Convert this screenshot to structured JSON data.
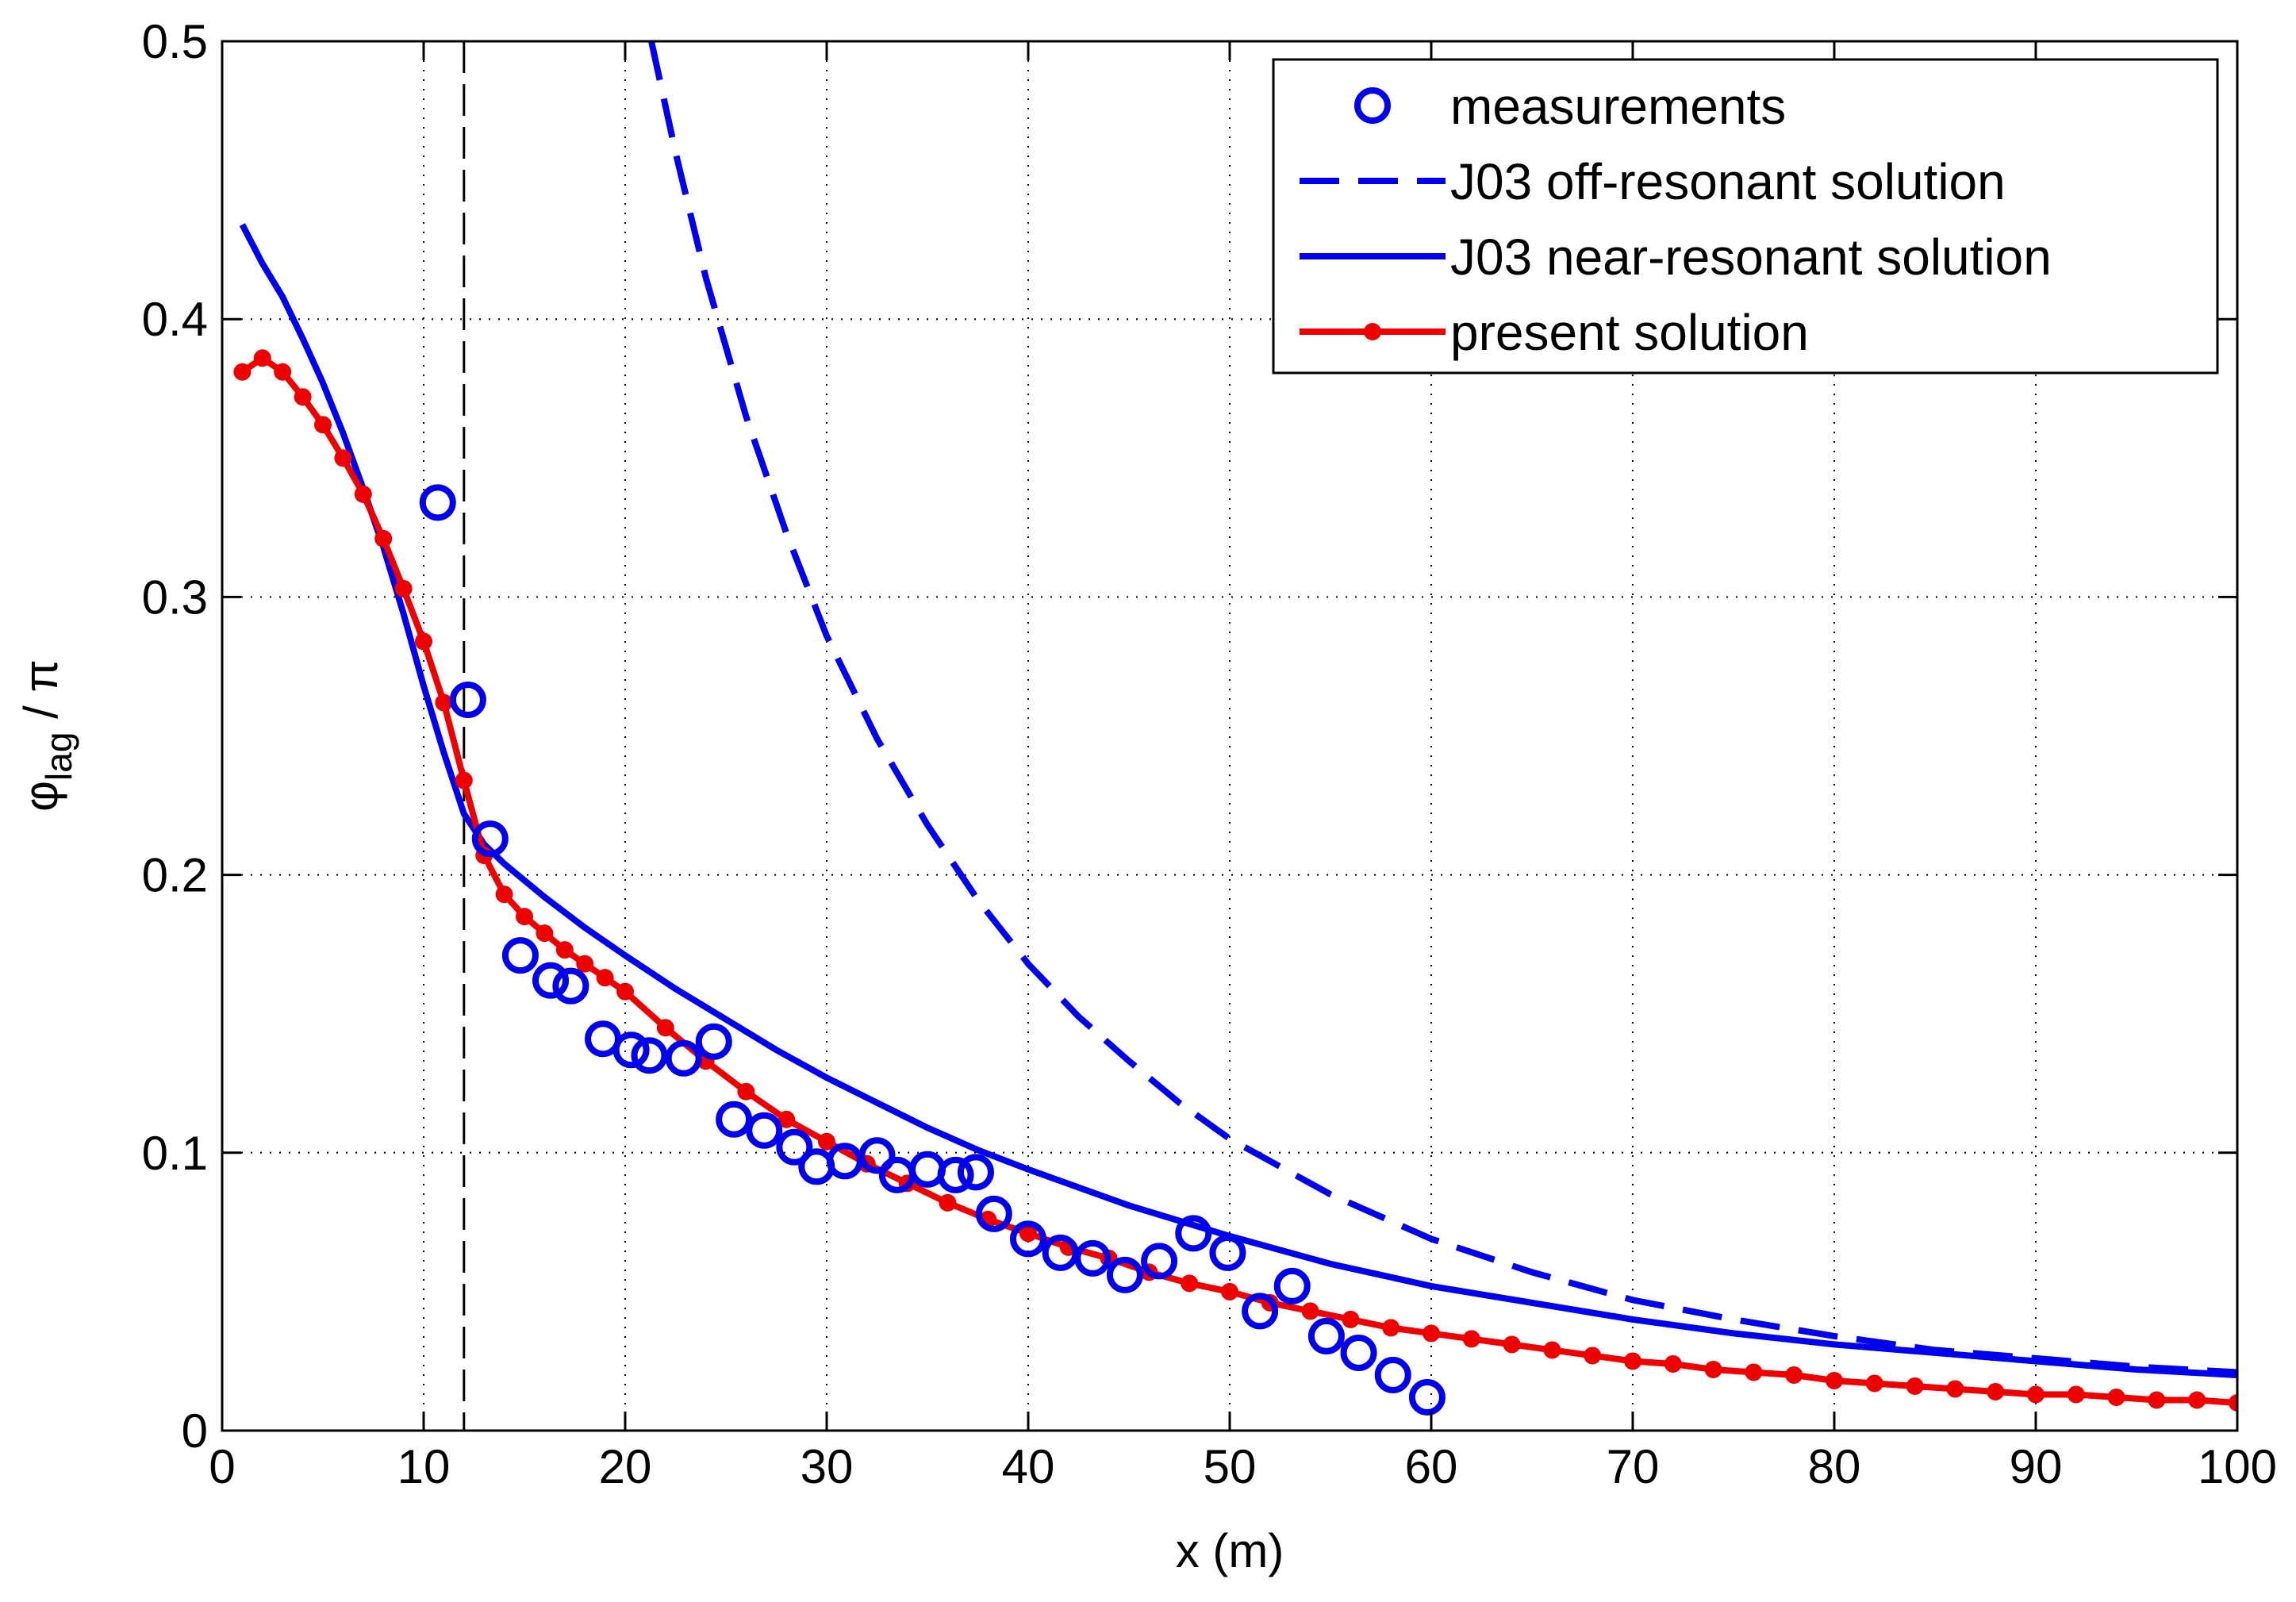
{
  "chart_data": {
    "type": "line",
    "title": "",
    "xlabel": "x (m)",
    "ylabel": {
      "main": "φ",
      "sub": "lag",
      "suffix": " / π"
    },
    "xlim": [
      0,
      100
    ],
    "ylim": [
      0,
      0.5
    ],
    "xticks": [
      0,
      10,
      20,
      30,
      40,
      50,
      60,
      70,
      80,
      90,
      100
    ],
    "xtick_labels": [
      "0",
      "10",
      "20",
      "30",
      "40",
      "50",
      "60",
      "70",
      "80",
      "90",
      "100"
    ],
    "yticks": [
      0,
      0.1,
      0.2,
      0.3,
      0.4,
      0.5
    ],
    "ytick_labels": [
      "0",
      "0.1",
      "0.2",
      "0.3",
      "0.4",
      "0.5"
    ],
    "grid": true,
    "vline_x": 12,
    "legend_position": "top-right",
    "series": [
      {
        "name": "measurements",
        "style": "markers",
        "color": "#0000ee",
        "x": [
          10.7,
          12.2,
          13.3,
          14.8,
          16.3,
          17.3,
          18.9,
          20.3,
          21.2,
          22.9,
          24.4,
          25.4,
          26.9,
          28.4,
          29.5,
          30.9,
          32.5,
          33.5,
          35.0,
          36.4,
          37.4,
          38.3,
          40.0,
          41.6,
          43.2,
          44.8,
          46.5,
          48.2,
          49.9,
          51.5,
          53.1,
          54.8,
          56.4,
          58.1,
          59.8
        ],
        "y": [
          0.334,
          0.263,
          0.213,
          0.171,
          0.162,
          0.16,
          0.141,
          0.137,
          0.135,
          0.134,
          0.14,
          0.112,
          0.108,
          0.102,
          0.095,
          0.097,
          0.099,
          0.092,
          0.094,
          0.092,
          0.093,
          0.078,
          0.069,
          0.064,
          0.062,
          0.056,
          0.061,
          0.071,
          0.064,
          0.043,
          0.052,
          0.034,
          0.028,
          0.02,
          0.012
        ]
      },
      {
        "name": "J03 off-resonant solution",
        "style": "dashed",
        "color": "#0000ee",
        "x": [
          21.3,
          22.5,
          24,
          26,
          28,
          30,
          32.5,
          35,
          37.5,
          40,
          42.5,
          45,
          47.5,
          50,
          55,
          60,
          65,
          70,
          75,
          80,
          85,
          90,
          95,
          100
        ],
        "y": [
          0.5,
          0.46,
          0.415,
          0.365,
          0.323,
          0.286,
          0.249,
          0.218,
          0.191,
          0.168,
          0.149,
          0.133,
          0.118,
          0.105,
          0.085,
          0.069,
          0.057,
          0.047,
          0.04,
          0.034,
          0.029,
          0.026,
          0.023,
          0.021
        ]
      },
      {
        "name": "J03 near-resonant solution",
        "style": "solid",
        "color": "#0000ee",
        "x": [
          1,
          2,
          3,
          4,
          5,
          6,
          7,
          8,
          9,
          10,
          11,
          12,
          13,
          14,
          16,
          18,
          20,
          22.5,
          25,
          27.5,
          30,
          32.5,
          35,
          37.5,
          40,
          45,
          50,
          55,
          60,
          65,
          70,
          75,
          80,
          85,
          90,
          95,
          100
        ],
        "y": [
          0.434,
          0.42,
          0.408,
          0.393,
          0.377,
          0.359,
          0.339,
          0.318,
          0.294,
          0.268,
          0.244,
          0.222,
          0.211,
          0.204,
          0.192,
          0.181,
          0.171,
          0.159,
          0.148,
          0.137,
          0.127,
          0.118,
          0.109,
          0.101,
          0.094,
          0.081,
          0.07,
          0.06,
          0.052,
          0.046,
          0.04,
          0.035,
          0.031,
          0.028,
          0.025,
          0.022,
          0.02
        ]
      },
      {
        "name": "present solution",
        "style": "line-dot",
        "color": "#ee0000",
        "x": [
          1,
          2,
          3,
          4,
          5,
          6,
          7,
          8,
          9,
          10,
          11,
          12,
          13,
          14,
          15,
          16,
          17,
          18,
          19,
          20,
          22,
          24,
          26,
          28,
          30,
          32,
          34,
          36,
          38,
          40,
          42,
          44,
          46,
          48,
          50,
          52,
          54,
          56,
          58,
          60,
          62,
          64,
          66,
          68,
          70,
          72,
          74,
          76,
          78,
          80,
          82,
          84,
          86,
          88,
          90,
          92,
          94,
          96,
          98,
          100
        ],
        "y": [
          0.381,
          0.386,
          0.381,
          0.372,
          0.362,
          0.35,
          0.337,
          0.321,
          0.303,
          0.284,
          0.262,
          0.234,
          0.207,
          0.193,
          0.185,
          0.179,
          0.173,
          0.168,
          0.163,
          0.158,
          0.145,
          0.133,
          0.122,
          0.112,
          0.104,
          0.096,
          0.089,
          0.082,
          0.076,
          0.071,
          0.066,
          0.062,
          0.057,
          0.053,
          0.05,
          0.046,
          0.043,
          0.04,
          0.037,
          0.035,
          0.033,
          0.031,
          0.029,
          0.027,
          0.025,
          0.024,
          0.022,
          0.021,
          0.02,
          0.018,
          0.017,
          0.016,
          0.015,
          0.014,
          0.013,
          0.013,
          0.012,
          0.011,
          0.011,
          0.01
        ]
      }
    ]
  }
}
